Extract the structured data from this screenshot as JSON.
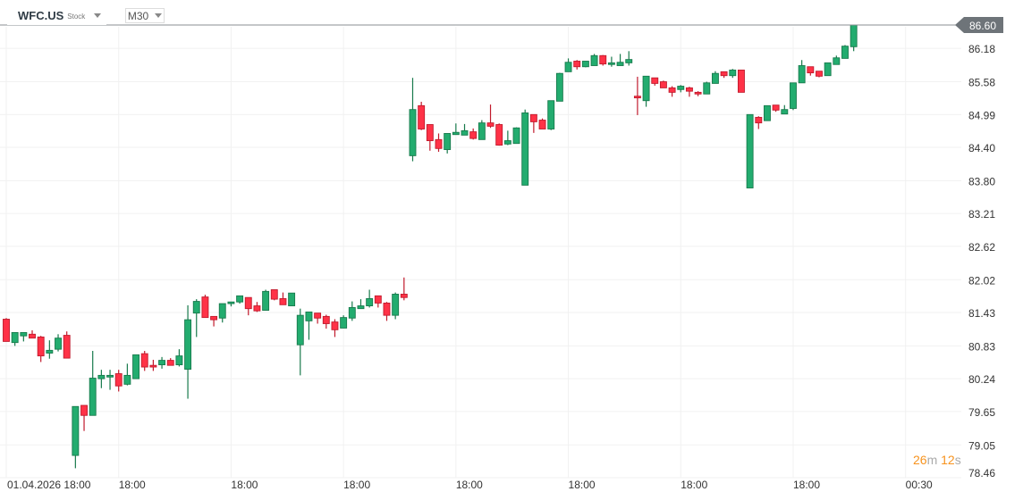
{
  "header": {
    "symbol": "WFC.US",
    "type": "Stock",
    "timeframe": "M30"
  },
  "timer": {
    "minutes": "26",
    "minutes_unit": "m",
    "seconds": "12",
    "seconds_unit": "s"
  },
  "colors": {
    "up": "#23ac6f",
    "up_border": "#187a4c",
    "down": "#ff3247",
    "down_border": "#c11a2c",
    "price_tag": "#6e7479",
    "grid": "#f1f1f1",
    "timer": "#f7931e"
  },
  "chart_data": {
    "type": "candlestick",
    "ylim": [
      78.46,
      87.05
    ],
    "y_ticks": [
      "86.18",
      "85.58",
      "84.99",
      "84.40",
      "83.80",
      "83.21",
      "82.62",
      "82.02",
      "81.43",
      "80.83",
      "80.24",
      "79.65",
      "79.05",
      "78.46"
    ],
    "x_ticks": [
      {
        "index": 0,
        "label": "01.04.2026 18:00"
      },
      {
        "index": 13,
        "label": "18:00"
      },
      {
        "index": 26,
        "label": "18:00"
      },
      {
        "index": 39,
        "label": "18:00"
      },
      {
        "index": 52,
        "label": "18:00"
      },
      {
        "index": 65,
        "label": "18:00"
      },
      {
        "index": 78,
        "label": "18:00"
      },
      {
        "index": 91,
        "label": "18:00"
      },
      {
        "index": 104,
        "label": "00:30"
      }
    ],
    "current_price": "86.60",
    "candles_ohlc": [
      [
        81.31,
        81.33,
        80.91,
        80.91
      ],
      [
        80.89,
        81.07,
        80.83,
        81.07
      ],
      [
        81.01,
        81.07,
        80.91,
        81.07
      ],
      [
        81.04,
        81.11,
        80.97,
        80.97
      ],
      [
        80.99,
        81.01,
        80.54,
        80.65
      ],
      [
        80.7,
        80.93,
        80.6,
        80.75
      ],
      [
        80.77,
        81.04,
        80.73,
        80.97
      ],
      [
        81.02,
        81.09,
        80.61,
        80.61
      ],
      [
        78.86,
        79.74,
        78.63,
        79.74
      ],
      [
        79.76,
        79.76,
        79.3,
        79.58
      ],
      [
        79.58,
        80.74,
        79.58,
        80.25
      ],
      [
        80.24,
        80.4,
        80.07,
        80.3
      ],
      [
        80.27,
        80.4,
        80.04,
        80.3
      ],
      [
        80.33,
        80.4,
        80.01,
        80.11
      ],
      [
        80.14,
        80.51,
        80.12,
        80.3
      ],
      [
        80.24,
        80.67,
        80.24,
        80.67
      ],
      [
        80.69,
        80.74,
        80.38,
        80.45
      ],
      [
        80.48,
        80.58,
        80.38,
        80.45
      ],
      [
        80.49,
        80.63,
        80.42,
        80.57
      ],
      [
        80.57,
        80.61,
        80.48,
        80.48
      ],
      [
        80.49,
        80.77,
        80.46,
        80.65
      ],
      [
        80.41,
        81.56,
        79.88,
        81.3
      ],
      [
        81.42,
        81.67,
        80.99,
        81.63
      ],
      [
        81.71,
        81.75,
        81.34,
        81.34
      ],
      [
        81.36,
        81.36,
        81.18,
        81.3
      ],
      [
        81.33,
        81.59,
        81.25,
        81.59
      ],
      [
        81.59,
        81.62,
        81.54,
        81.62
      ],
      [
        81.62,
        81.73,
        81.59,
        81.73
      ],
      [
        81.7,
        81.7,
        81.38,
        81.5
      ],
      [
        81.55,
        81.62,
        81.44,
        81.46
      ],
      [
        81.47,
        81.84,
        81.47,
        81.81
      ],
      [
        81.84,
        81.84,
        81.65,
        81.67
      ],
      [
        81.68,
        81.79,
        81.57,
        81.57
      ],
      [
        81.55,
        81.78,
        81.55,
        81.78
      ],
      [
        80.85,
        81.5,
        80.3,
        81.38
      ],
      [
        81.28,
        81.44,
        80.94,
        81.44
      ],
      [
        81.42,
        81.42,
        81.23,
        81.33
      ],
      [
        81.36,
        81.39,
        81.14,
        81.23
      ],
      [
        81.26,
        81.31,
        80.99,
        81.12
      ],
      [
        81.15,
        81.38,
        81.15,
        81.34
      ],
      [
        81.33,
        81.63,
        81.28,
        81.52
      ],
      [
        81.5,
        81.67,
        81.5,
        81.55
      ],
      [
        81.55,
        81.84,
        81.52,
        81.68
      ],
      [
        81.73,
        81.73,
        81.52,
        81.6
      ],
      [
        81.6,
        81.62,
        81.28,
        81.38
      ],
      [
        81.38,
        81.79,
        81.31,
        81.76
      ],
      [
        81.76,
        82.06,
        81.65,
        81.7
      ],
      [
        84.25,
        85.65,
        84.15,
        85.08
      ],
      [
        85.15,
        85.22,
        84.71,
        84.73
      ],
      [
        84.81,
        84.81,
        84.34,
        84.52
      ],
      [
        84.54,
        84.65,
        84.32,
        84.38
      ],
      [
        84.36,
        84.65,
        84.29,
        84.65
      ],
      [
        84.63,
        84.83,
        84.63,
        84.67
      ],
      [
        84.62,
        84.82,
        84.62,
        84.7
      ],
      [
        84.68,
        84.74,
        84.54,
        84.56
      ],
      [
        84.54,
        84.89,
        84.54,
        84.84
      ],
      [
        84.84,
        85.17,
        84.75,
        84.78
      ],
      [
        84.81,
        84.83,
        84.43,
        84.44
      ],
      [
        84.46,
        84.7,
        84.44,
        84.52
      ],
      [
        84.47,
        84.76,
        84.47,
        84.75
      ],
      [
        83.72,
        85.08,
        83.72,
        85.02
      ],
      [
        84.99,
        84.99,
        84.66,
        84.86
      ],
      [
        84.89,
        84.92,
        84.73,
        84.73
      ],
      [
        84.73,
        85.24,
        84.71,
        85.24
      ],
      [
        85.23,
        85.74,
        85.23,
        85.73
      ],
      [
        85.76,
        86.0,
        85.76,
        85.93
      ],
      [
        85.95,
        85.97,
        85.8,
        85.85
      ],
      [
        85.85,
        85.95,
        85.84,
        85.95
      ],
      [
        85.87,
        86.08,
        85.87,
        86.05
      ],
      [
        86.05,
        86.06,
        85.87,
        85.9
      ],
      [
        85.89,
        86.03,
        85.85,
        85.92
      ],
      [
        85.87,
        86.08,
        85.87,
        85.93
      ],
      [
        85.92,
        86.13,
        85.87,
        85.98
      ],
      [
        85.32,
        85.67,
        84.98,
        85.29
      ],
      [
        85.24,
        85.68,
        85.13,
        85.68
      ],
      [
        85.65,
        85.65,
        85.51,
        85.55
      ],
      [
        85.58,
        85.6,
        85.47,
        85.47
      ],
      [
        85.47,
        85.5,
        85.31,
        85.39
      ],
      [
        85.44,
        85.52,
        85.39,
        85.5
      ],
      [
        85.47,
        85.49,
        85.31,
        85.41
      ],
      [
        85.39,
        85.41,
        85.32,
        85.36
      ],
      [
        85.36,
        85.58,
        85.36,
        85.56
      ],
      [
        85.55,
        85.77,
        85.55,
        85.73
      ],
      [
        85.76,
        85.76,
        85.65,
        85.69
      ],
      [
        85.69,
        85.81,
        85.65,
        85.79
      ],
      [
        85.79,
        85.79,
        85.39,
        85.39
      ],
      [
        83.67,
        84.99,
        83.67,
        84.99
      ],
      [
        84.94,
        84.96,
        84.73,
        84.84
      ],
      [
        84.88,
        85.15,
        84.88,
        85.15
      ],
      [
        85.16,
        85.16,
        85.04,
        85.07
      ],
      [
        85.0,
        85.16,
        85.0,
        85.08
      ],
      [
        85.1,
        85.56,
        85.07,
        85.56
      ],
      [
        85.56,
        85.97,
        85.56,
        85.87
      ],
      [
        85.85,
        85.85,
        85.69,
        85.74
      ],
      [
        85.77,
        85.77,
        85.66,
        85.68
      ],
      [
        85.69,
        85.92,
        85.69,
        85.92
      ],
      [
        85.89,
        86.05,
        85.89,
        86.01
      ],
      [
        86.0,
        86.24,
        86.0,
        86.22
      ],
      [
        86.21,
        86.6,
        86.13,
        86.6
      ]
    ]
  }
}
